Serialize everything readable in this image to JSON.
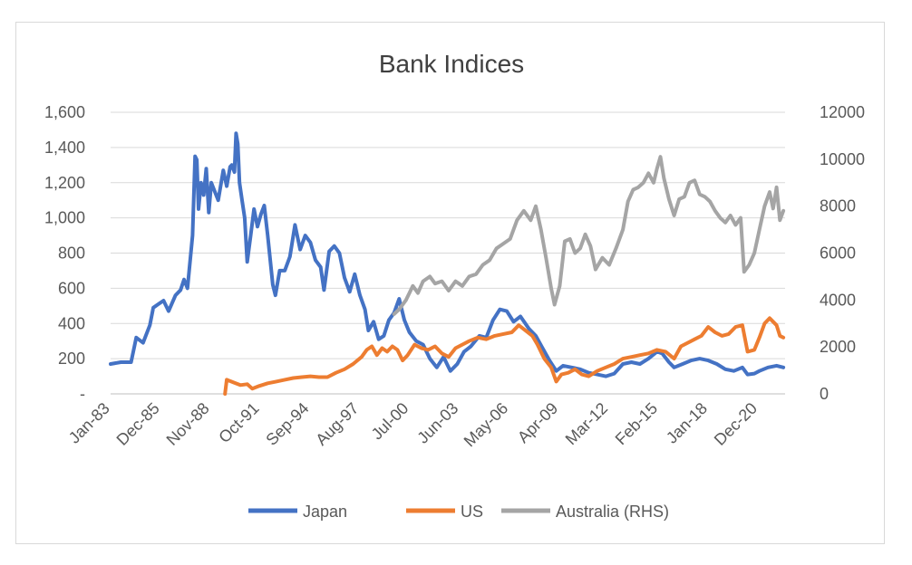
{
  "chart_data": {
    "type": "line",
    "title": "Bank Indices",
    "xlabel": "",
    "ylabel": "",
    "x_ticks": [
      "Jan-83",
      "Dec-85",
      "Nov-88",
      "Oct-91",
      "Sep-94",
      "Aug-97",
      "Jul-00",
      "Jun-03",
      "May-06",
      "Apr-09",
      "Mar-12",
      "Feb-15",
      "Jan-18",
      "Dec-20"
    ],
    "x_range": [
      1983.0,
      2022.5
    ],
    "y_left": {
      "ticks": [
        "-",
        "200",
        "400",
        "600",
        "800",
        "1,000",
        "1,200",
        "1,400",
        "1,600"
      ],
      "ylim": [
        0,
        1600
      ]
    },
    "y_right": {
      "ticks": [
        "0",
        "2000",
        "4000",
        "6000",
        "8000",
        "10000",
        "12000"
      ],
      "ylim": [
        0,
        12000
      ]
    },
    "grid": true,
    "legend_position": "bottom",
    "series": [
      {
        "name": "Japan",
        "axis": "left",
        "color": "#4472c4",
        "points": [
          [
            1983.0,
            170
          ],
          [
            1983.6,
            180
          ],
          [
            1984.2,
            180
          ],
          [
            1984.5,
            320
          ],
          [
            1984.9,
            290
          ],
          [
            1985.3,
            390
          ],
          [
            1985.5,
            490
          ],
          [
            1985.8,
            510
          ],
          [
            1986.1,
            530
          ],
          [
            1986.4,
            470
          ],
          [
            1986.8,
            560
          ],
          [
            1987.1,
            590
          ],
          [
            1987.3,
            650
          ],
          [
            1987.5,
            600
          ],
          [
            1987.8,
            900
          ],
          [
            1987.95,
            1350
          ],
          [
            1988.05,
            1330
          ],
          [
            1988.15,
            1050
          ],
          [
            1988.3,
            1200
          ],
          [
            1988.45,
            1130
          ],
          [
            1988.6,
            1280
          ],
          [
            1988.75,
            1030
          ],
          [
            1988.9,
            1200
          ],
          [
            1989.1,
            1150
          ],
          [
            1989.3,
            1100
          ],
          [
            1989.6,
            1270
          ],
          [
            1989.8,
            1180
          ],
          [
            1990.0,
            1290
          ],
          [
            1990.1,
            1300
          ],
          [
            1990.25,
            1260
          ],
          [
            1990.35,
            1480
          ],
          [
            1990.45,
            1420
          ],
          [
            1990.55,
            1200
          ],
          [
            1990.7,
            1100
          ],
          [
            1990.85,
            1000
          ],
          [
            1991.0,
            750
          ],
          [
            1991.2,
            900
          ],
          [
            1991.4,
            1050
          ],
          [
            1991.6,
            950
          ],
          [
            1991.8,
            1020
          ],
          [
            1992.0,
            1070
          ],
          [
            1992.2,
            900
          ],
          [
            1992.5,
            620
          ],
          [
            1992.65,
            560
          ],
          [
            1992.9,
            700
          ],
          [
            1993.2,
            700
          ],
          [
            1993.5,
            780
          ],
          [
            1993.8,
            960
          ],
          [
            1994.1,
            820
          ],
          [
            1994.4,
            900
          ],
          [
            1994.7,
            860
          ],
          [
            1995.0,
            760
          ],
          [
            1995.3,
            720
          ],
          [
            1995.5,
            590
          ],
          [
            1995.8,
            810
          ],
          [
            1996.1,
            840
          ],
          [
            1996.4,
            800
          ],
          [
            1996.7,
            660
          ],
          [
            1997.0,
            580
          ],
          [
            1997.3,
            680
          ],
          [
            1997.6,
            560
          ],
          [
            1997.9,
            480
          ],
          [
            1998.1,
            360
          ],
          [
            1998.4,
            410
          ],
          [
            1998.7,
            310
          ],
          [
            1999.0,
            330
          ],
          [
            1999.3,
            420
          ],
          [
            1999.6,
            460
          ],
          [
            1999.9,
            540
          ],
          [
            2000.2,
            420
          ],
          [
            2000.5,
            350
          ],
          [
            2000.9,
            300
          ],
          [
            2001.3,
            280
          ],
          [
            2001.7,
            200
          ],
          [
            2002.1,
            150
          ],
          [
            2002.5,
            210
          ],
          [
            2002.9,
            130
          ],
          [
            2003.3,
            170
          ],
          [
            2003.7,
            240
          ],
          [
            2004.1,
            270
          ],
          [
            2004.6,
            330
          ],
          [
            2005.0,
            320
          ],
          [
            2005.4,
            420
          ],
          [
            2005.8,
            480
          ],
          [
            2006.2,
            470
          ],
          [
            2006.6,
            410
          ],
          [
            2007.0,
            440
          ],
          [
            2007.5,
            370
          ],
          [
            2007.9,
            330
          ],
          [
            2008.3,
            260
          ],
          [
            2008.7,
            190
          ],
          [
            2009.1,
            130
          ],
          [
            2009.5,
            160
          ],
          [
            2010.0,
            150
          ],
          [
            2010.5,
            140
          ],
          [
            2011.0,
            120
          ],
          [
            2011.5,
            110
          ],
          [
            2012.0,
            100
          ],
          [
            2012.5,
            115
          ],
          [
            2013.0,
            170
          ],
          [
            2013.5,
            180
          ],
          [
            2014.0,
            170
          ],
          [
            2014.5,
            200
          ],
          [
            2015.0,
            240
          ],
          [
            2015.3,
            230
          ],
          [
            2015.7,
            180
          ],
          [
            2016.0,
            150
          ],
          [
            2016.5,
            170
          ],
          [
            2017.0,
            190
          ],
          [
            2017.5,
            200
          ],
          [
            2018.0,
            190
          ],
          [
            2018.5,
            170
          ],
          [
            2019.0,
            140
          ],
          [
            2019.5,
            130
          ],
          [
            2020.0,
            150
          ],
          [
            2020.3,
            110
          ],
          [
            2020.7,
            115
          ],
          [
            2021.0,
            130
          ],
          [
            2021.5,
            150
          ],
          [
            2022.0,
            160
          ],
          [
            2022.4,
            150
          ]
        ]
      },
      {
        "name": "US",
        "axis": "left",
        "color": "#ed7d31",
        "points": [
          [
            1989.7,
            0
          ],
          [
            1989.8,
            80
          ],
          [
            1990.2,
            65
          ],
          [
            1990.6,
            50
          ],
          [
            1991.0,
            55
          ],
          [
            1991.3,
            30
          ],
          [
            1991.7,
            45
          ],
          [
            1992.2,
            60
          ],
          [
            1992.7,
            70
          ],
          [
            1993.2,
            80
          ],
          [
            1993.7,
            90
          ],
          [
            1994.2,
            95
          ],
          [
            1994.7,
            100
          ],
          [
            1995.2,
            95
          ],
          [
            1995.7,
            95
          ],
          [
            1996.2,
            120
          ],
          [
            1996.7,
            140
          ],
          [
            1997.2,
            170
          ],
          [
            1997.7,
            210
          ],
          [
            1998.0,
            250
          ],
          [
            1998.3,
            270
          ],
          [
            1998.6,
            220
          ],
          [
            1998.9,
            260
          ],
          [
            1999.2,
            240
          ],
          [
            1999.5,
            270
          ],
          [
            1999.8,
            250
          ],
          [
            2000.1,
            190
          ],
          [
            2000.4,
            220
          ],
          [
            2000.8,
            280
          ],
          [
            2001.2,
            260
          ],
          [
            2001.6,
            250
          ],
          [
            2002.0,
            270
          ],
          [
            2002.4,
            230
          ],
          [
            2002.8,
            210
          ],
          [
            2003.2,
            260
          ],
          [
            2003.6,
            280
          ],
          [
            2004.0,
            300
          ],
          [
            2004.5,
            320
          ],
          [
            2005.0,
            310
          ],
          [
            2005.5,
            330
          ],
          [
            2006.0,
            340
          ],
          [
            2006.5,
            350
          ],
          [
            2006.9,
            390
          ],
          [
            2007.3,
            360
          ],
          [
            2007.7,
            330
          ],
          [
            2008.0,
            280
          ],
          [
            2008.4,
            200
          ],
          [
            2008.8,
            150
          ],
          [
            2009.1,
            70
          ],
          [
            2009.4,
            110
          ],
          [
            2009.8,
            120
          ],
          [
            2010.2,
            140
          ],
          [
            2010.6,
            110
          ],
          [
            2011.0,
            100
          ],
          [
            2011.5,
            130
          ],
          [
            2012.0,
            150
          ],
          [
            2012.5,
            170
          ],
          [
            2013.0,
            200
          ],
          [
            2013.5,
            210
          ],
          [
            2014.0,
            220
          ],
          [
            2014.5,
            230
          ],
          [
            2015.0,
            250
          ],
          [
            2015.5,
            240
          ],
          [
            2016.0,
            200
          ],
          [
            2016.4,
            270
          ],
          [
            2016.8,
            290
          ],
          [
            2017.2,
            310
          ],
          [
            2017.6,
            330
          ],
          [
            2018.0,
            380
          ],
          [
            2018.4,
            350
          ],
          [
            2018.8,
            330
          ],
          [
            2019.2,
            340
          ],
          [
            2019.6,
            380
          ],
          [
            2020.0,
            390
          ],
          [
            2020.3,
            240
          ],
          [
            2020.7,
            250
          ],
          [
            2021.0,
            320
          ],
          [
            2021.3,
            400
          ],
          [
            2021.6,
            430
          ],
          [
            2021.8,
            410
          ],
          [
            2022.0,
            390
          ],
          [
            2022.2,
            330
          ],
          [
            2022.4,
            320
          ]
        ]
      },
      {
        "name": "Australia (RHS)",
        "axis": "right",
        "color": "#a5a5a5",
        "points": [
          [
            1999.6,
            3400
          ],
          [
            1999.9,
            3600
          ],
          [
            2000.3,
            4000
          ],
          [
            2000.7,
            4600
          ],
          [
            2001.0,
            4300
          ],
          [
            2001.3,
            4800
          ],
          [
            2001.7,
            5000
          ],
          [
            2002.0,
            4700
          ],
          [
            2002.4,
            4800
          ],
          [
            2002.8,
            4400
          ],
          [
            2003.2,
            4800
          ],
          [
            2003.6,
            4600
          ],
          [
            2004.0,
            5000
          ],
          [
            2004.4,
            5100
          ],
          [
            2004.8,
            5500
          ],
          [
            2005.2,
            5700
          ],
          [
            2005.6,
            6200
          ],
          [
            2006.0,
            6400
          ],
          [
            2006.4,
            6600
          ],
          [
            2006.8,
            7400
          ],
          [
            2007.2,
            7800
          ],
          [
            2007.6,
            7400
          ],
          [
            2007.9,
            8000
          ],
          [
            2008.2,
            7000
          ],
          [
            2008.5,
            5800
          ],
          [
            2008.8,
            4500
          ],
          [
            2009.0,
            3800
          ],
          [
            2009.3,
            4600
          ],
          [
            2009.6,
            6500
          ],
          [
            2009.9,
            6600
          ],
          [
            2010.2,
            6000
          ],
          [
            2010.5,
            6200
          ],
          [
            2010.8,
            6800
          ],
          [
            2011.1,
            6300
          ],
          [
            2011.4,
            5300
          ],
          [
            2011.8,
            5800
          ],
          [
            2012.2,
            5500
          ],
          [
            2012.6,
            6200
          ],
          [
            2013.0,
            7000
          ],
          [
            2013.3,
            8200
          ],
          [
            2013.6,
            8700
          ],
          [
            2013.9,
            8800
          ],
          [
            2014.2,
            9000
          ],
          [
            2014.5,
            9400
          ],
          [
            2014.8,
            9000
          ],
          [
            2015.0,
            9600
          ],
          [
            2015.2,
            10100
          ],
          [
            2015.4,
            9200
          ],
          [
            2015.7,
            8300
          ],
          [
            2016.0,
            7600
          ],
          [
            2016.3,
            8300
          ],
          [
            2016.6,
            8400
          ],
          [
            2016.9,
            9000
          ],
          [
            2017.2,
            9100
          ],
          [
            2017.5,
            8500
          ],
          [
            2017.8,
            8400
          ],
          [
            2018.1,
            8200
          ],
          [
            2018.4,
            7800
          ],
          [
            2018.7,
            7500
          ],
          [
            2019.0,
            7300
          ],
          [
            2019.3,
            7600
          ],
          [
            2019.6,
            7200
          ],
          [
            2019.9,
            7500
          ],
          [
            2020.1,
            5200
          ],
          [
            2020.4,
            5500
          ],
          [
            2020.7,
            6000
          ],
          [
            2021.0,
            7000
          ],
          [
            2021.3,
            8000
          ],
          [
            2021.6,
            8600
          ],
          [
            2021.8,
            7900
          ],
          [
            2022.0,
            8800
          ],
          [
            2022.2,
            7400
          ],
          [
            2022.4,
            7800
          ]
        ]
      }
    ]
  }
}
